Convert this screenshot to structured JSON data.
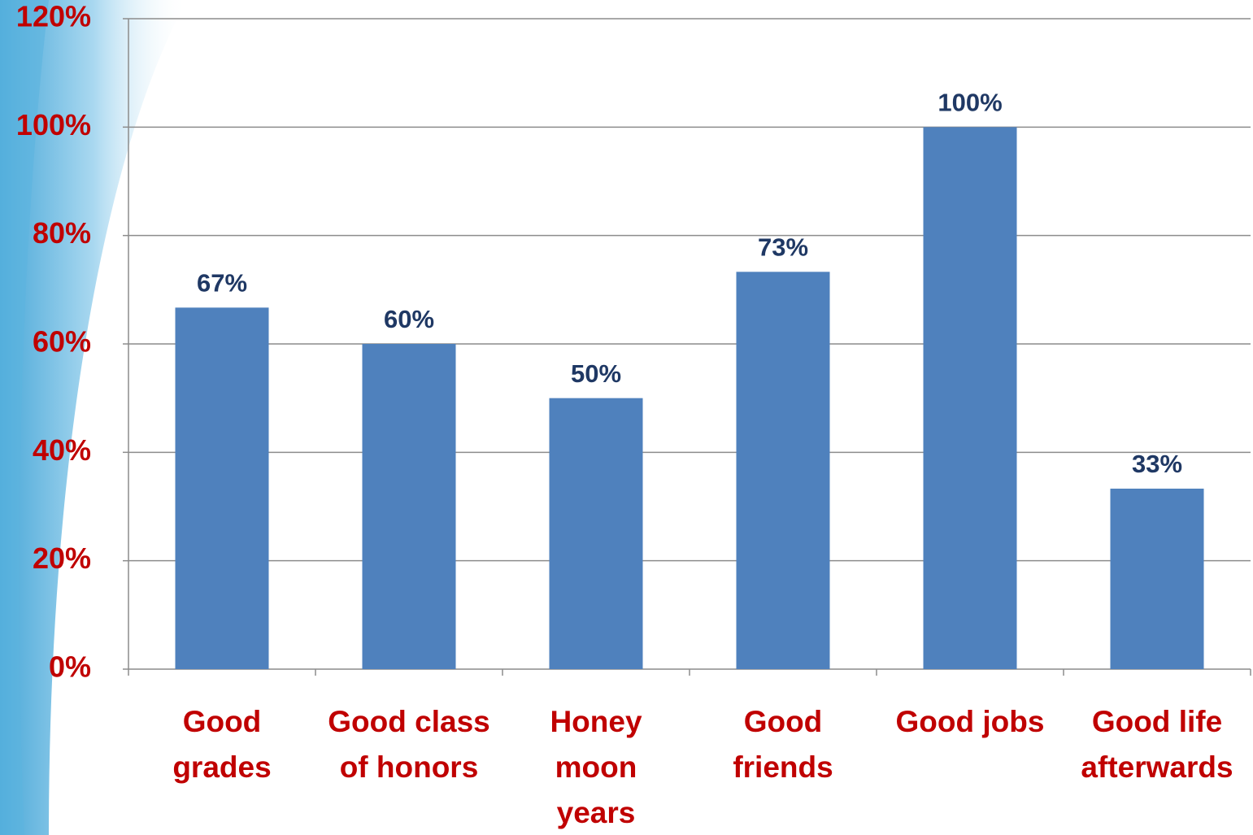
{
  "chart_data": {
    "type": "bar",
    "categories": [
      "Good\ngrades",
      "Good class\nof honors",
      "Honey\nmoon\nyears",
      "Good\nfriends",
      "Good jobs",
      "Good life\nafterwards"
    ],
    "values": [
      66.7,
      60,
      50,
      73.3,
      100,
      33.3
    ],
    "value_labels": [
      "67%",
      "60%",
      "50%",
      "73%",
      "100%",
      "33%"
    ],
    "color": "#4f81bd",
    "ylim": [
      0,
      120
    ],
    "yticks": [
      {
        "value": 0,
        "label": "0%"
      },
      {
        "value": 20,
        "label": "20%"
      },
      {
        "value": 40,
        "label": "40%"
      },
      {
        "value": 60,
        "label": "60%"
      },
      {
        "value": 80,
        "label": "80%"
      },
      {
        "value": 100,
        "label": "100%"
      },
      {
        "value": 120,
        "label": "120%"
      }
    ],
    "grid": true
  }
}
